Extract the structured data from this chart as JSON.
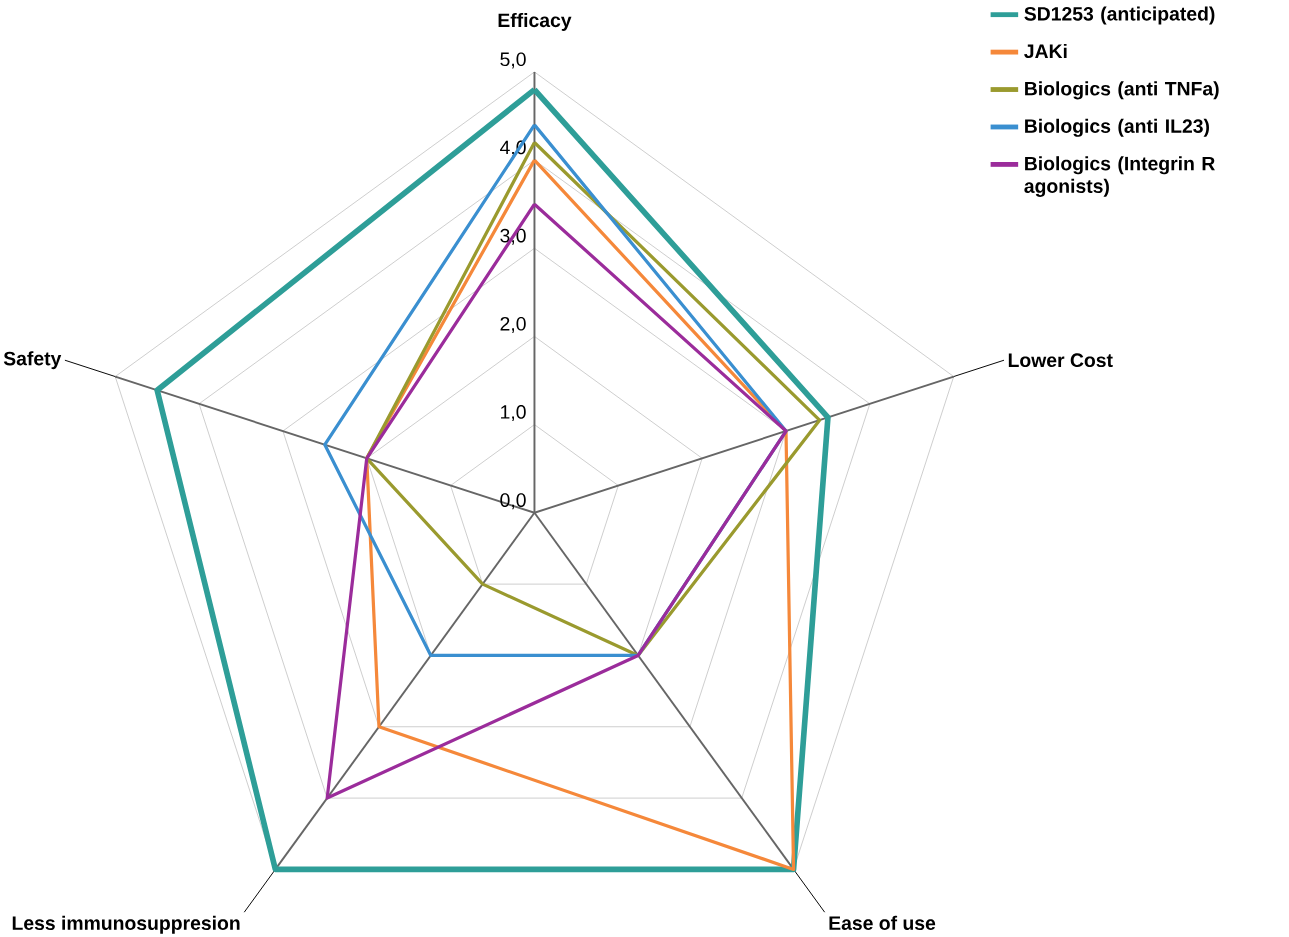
{
  "chart_data": {
    "type": "radar",
    "categories": [
      "Efficacy",
      "Lower Cost",
      "Ease of use",
      "Less immunosuppresion",
      "Safety"
    ],
    "ylim": [
      0,
      5
    ],
    "yticks": [
      {
        "value": 0,
        "label": "0,0"
      },
      {
        "value": 1,
        "label": "1,0"
      },
      {
        "value": 2,
        "label": "2,0"
      },
      {
        "value": 3,
        "label": "3,0"
      },
      {
        "value": 4,
        "label": "4,0"
      },
      {
        "value": 5,
        "label": "5,0"
      }
    ],
    "grid": true,
    "legend": "top right",
    "series": [
      {
        "name": "SD1253 (anticipated)",
        "color": "#2e9e98",
        "values": [
          4.8,
          3.5,
          5.0,
          5.0,
          4.5
        ]
      },
      {
        "name": "JAKi",
        "color": "#f5883a",
        "values": [
          4.0,
          3.0,
          5.0,
          3.0,
          2.0
        ]
      },
      {
        "name": "Biologics (anti TNFa)",
        "color": "#9a9a2e",
        "values": [
          4.2,
          3.4,
          2.0,
          1.0,
          2.0
        ]
      },
      {
        "name": "Biologics (anti IL23)",
        "color": "#3a8fd0",
        "values": [
          4.4,
          3.0,
          2.0,
          2.0,
          2.5
        ]
      },
      {
        "name": "Biologics (Integrin R agonists)",
        "color": "#9b2c9b",
        "values": [
          3.5,
          3.0,
          2.0,
          4.0,
          2.0
        ]
      }
    ]
  }
}
